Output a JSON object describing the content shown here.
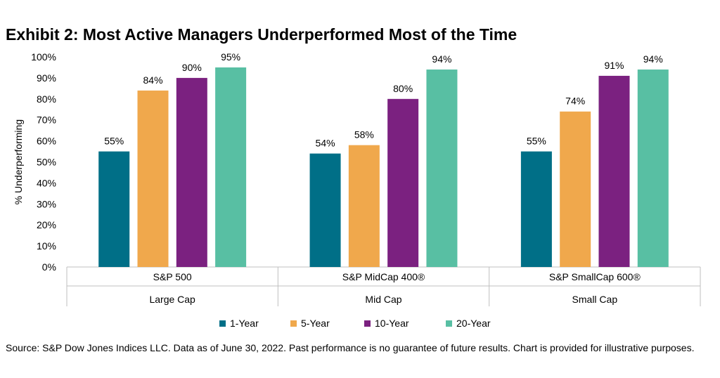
{
  "title": "Exhibit 2: Most Active Managers Underperformed Most of the Time",
  "source": "Source: S&P Dow Jones Indices LLC.  Data as of June 30, 2022.  Past performance is no guarantee of future results.  Chart is provided for illustrative purposes.",
  "colors": {
    "1-Year": "#006F87",
    "5-Year": "#F0A84C",
    "10-Year": "#7B2180",
    "20-Year": "#58BFA3"
  },
  "chart_data": {
    "type": "bar",
    "title": "Exhibit 2: Most Active Managers Underperformed Most of the Time",
    "xlabel": "",
    "ylabel": "% Underperforming",
    "ylim": [
      0,
      100
    ],
    "y_ticks": [
      "0%",
      "10%",
      "20%",
      "30%",
      "40%",
      "50%",
      "60%",
      "70%",
      "80%",
      "90%",
      "100%"
    ],
    "categories": [
      "S&P 500",
      "S&P MidCap 400®",
      "S&P SmallCap 600®"
    ],
    "category_groups": [
      "Large Cap",
      "Mid Cap",
      "Small Cap"
    ],
    "series": [
      {
        "name": "1-Year",
        "values": [
          55,
          54,
          55
        ]
      },
      {
        "name": "5-Year",
        "values": [
          84,
          58,
          74
        ]
      },
      {
        "name": "10-Year",
        "values": [
          90,
          80,
          91
        ]
      },
      {
        "name": "20-Year",
        "values": [
          95,
          94,
          94
        ]
      }
    ],
    "data_labels": [
      [
        "55%",
        "54%",
        "55%"
      ],
      [
        "84%",
        "58%",
        "74%"
      ],
      [
        "90%",
        "80%",
        "91%"
      ],
      [
        "95%",
        "94%",
        "94%"
      ]
    ],
    "legend_position": "bottom",
    "grid": false
  }
}
